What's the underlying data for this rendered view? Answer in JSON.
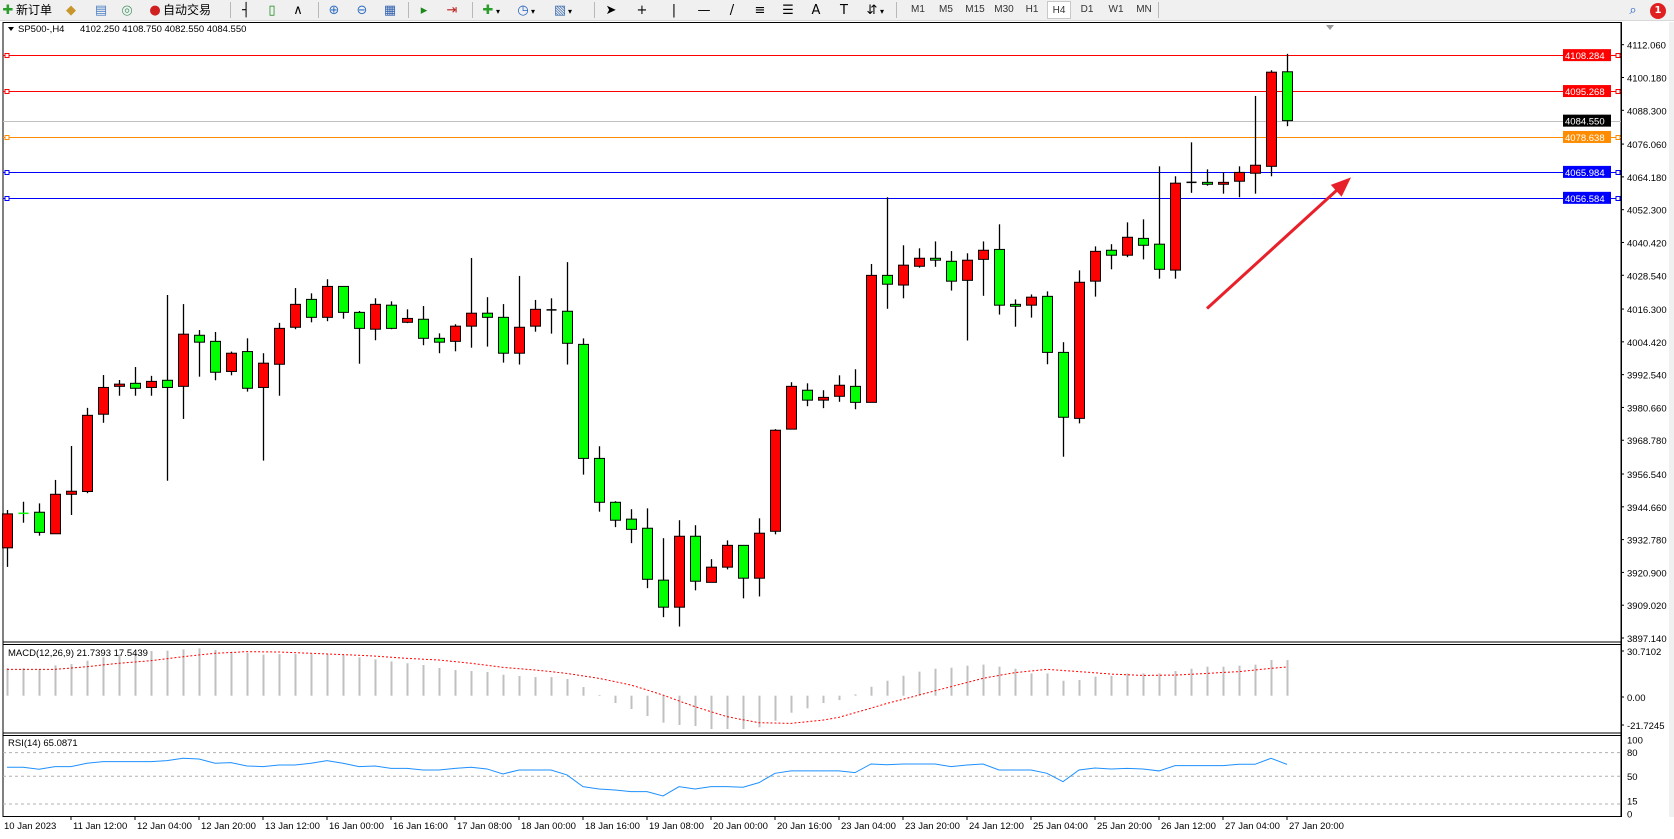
{
  "toolbar": {
    "new_order_label": "新订单",
    "auto_trading_label": "自动交易",
    "icons": [
      "new-order-icon",
      "market-watch-icon",
      "data-window-icon",
      "navigator-icon",
      "auto-trading-icon",
      "bar-chart-icon",
      "candlestick-icon",
      "line-chart-icon",
      "zoom-in-icon",
      "zoom-out-icon",
      "tile-windows-icon",
      "chart-shift-icon",
      "autoscroll-icon",
      "indicators-icon",
      "periods-icon",
      "templates-icon",
      "cursor-icon",
      "crosshair-icon",
      "vertical-line-icon",
      "horizontal-line-icon",
      "trendline-icon",
      "fibonacci-icon",
      "fibonacci-fan-icon",
      "text-icon",
      "text-label-icon",
      "arrows-icon",
      "search-icon",
      "notification-icon"
    ],
    "timeframes": [
      "M1",
      "M5",
      "M15",
      "M30",
      "H1",
      "H4",
      "D1",
      "W1",
      "MN"
    ],
    "active_timeframe": "H4",
    "notification_count": "1"
  },
  "chart_header": {
    "symbol": "SP500-,H4",
    "ohlc": "4102.250 4108.750 4082.550 4084.550"
  },
  "colors": {
    "bull_candle": "#ff0000",
    "bear_candle": "#00ff00",
    "doji": "#000000",
    "macd_hist": "#c0c0c0",
    "macd_signal": "#ff0000",
    "rsi_line": "#1e90ff",
    "arrow": "#e8202a"
  },
  "chart_data": {
    "type": "candlestick",
    "symbol": "SP500-",
    "timeframe": "H4",
    "ylim": [
      3897.14,
      4112.06
    ],
    "y_tick_labels": [
      "4112.060",
      "4100.180",
      "4088.300",
      "4076.060",
      "4064.180",
      "4052.300",
      "4040.420",
      "4028.540",
      "4016.300",
      "4004.420",
      "3992.540",
      "3980.660",
      "3968.780",
      "3956.540",
      "3944.660",
      "3932.780",
      "3920.900",
      "3909.020",
      "3897.140"
    ],
    "x_start_label": "10 Jan 2023",
    "x_tick_labels": [
      "11 Jan 12:00",
      "12 Jan 04:00",
      "12 Jan 20:00",
      "13 Jan 12:00",
      "16 Jan 00:00",
      "16 Jan 16:00",
      "17 Jan 08:00",
      "18 Jan 00:00",
      "18 Jan 16:00",
      "19 Jan 08:00",
      "20 Jan 00:00",
      "20 Jan 16:00",
      "23 Jan 04:00",
      "23 Jan 20:00",
      "24 Jan 12:00",
      "25 Jan 04:00",
      "25 Jan 20:00",
      "26 Jan 12:00",
      "27 Jan 04:00",
      "27 Jan 20:00"
    ],
    "x_tick_every_bars": 4,
    "ohlc": [
      [
        3929.8,
        3943.5,
        3922.9,
        3942.1
      ],
      [
        3942.3,
        3946.5,
        3938.9,
        3942.2
      ],
      [
        3942.7,
        3945.9,
        3934.2,
        3935.4
      ],
      [
        3934.9,
        3954.4,
        3934.9,
        3949.2
      ],
      [
        3949.2,
        3966.7,
        3941.7,
        3950.3
      ],
      [
        3950.2,
        3980.5,
        3949.6,
        3977.8
      ],
      [
        3978.2,
        3992.4,
        3975.1,
        3987.9
      ],
      [
        3988.3,
        3990.6,
        3984.9,
        3989.1
      ],
      [
        3989.4,
        3995.3,
        3984.9,
        3987.6
      ],
      [
        3987.9,
        3992.1,
        3984.9,
        3990.1
      ],
      [
        3990.5,
        4021.4,
        3954.1,
        3987.9
      ],
      [
        3988.3,
        4018.1,
        3976.5,
        4007.2
      ],
      [
        4006.8,
        4008.7,
        3991.8,
        4004.3
      ],
      [
        4004.6,
        4008.0,
        3990.5,
        3993.4
      ],
      [
        3993.7,
        4000.9,
        3992.3,
        4000.3
      ],
      [
        4000.9,
        4005.7,
        3986.4,
        3987.6
      ],
      [
        3987.9,
        4000.3,
        3961.4,
        3996.7
      ],
      [
        3996.3,
        4011.3,
        3984.9,
        4009.3
      ],
      [
        4009.7,
        4023.9,
        4009.0,
        4018.0
      ],
      [
        4019.8,
        4022.0,
        4011.5,
        4013.3
      ],
      [
        4013.3,
        4027.1,
        4011.9,
        4024.5
      ],
      [
        4024.5,
        4024.5,
        4012.8,
        4015.1
      ],
      [
        4015.1,
        4015.6,
        3996.5,
        4009.3
      ],
      [
        4009.0,
        4020.2,
        4005.0,
        4018.0
      ],
      [
        4017.7,
        4019.1,
        4009.0,
        4009.3
      ],
      [
        4011.5,
        4016.2,
        4011.2,
        4012.9
      ],
      [
        4012.6,
        4017.4,
        4003.2,
        4005.7
      ],
      [
        4005.7,
        4007.5,
        4000.3,
        4004.3
      ],
      [
        4004.6,
        4010.8,
        4001.0,
        4010.1
      ],
      [
        4010.1,
        4034.8,
        4002.3,
        4014.8
      ],
      [
        4014.8,
        4020.6,
        4002.7,
        4013.3
      ],
      [
        4013.3,
        4018.1,
        3996.9,
        4000.3
      ],
      [
        4000.3,
        4028.3,
        3996.2,
        4009.7
      ],
      [
        4010.1,
        4019.6,
        4008.1,
        4016.2
      ],
      [
        4016.0,
        4020.2,
        4007.4,
        4016.0
      ],
      [
        4015.5,
        4033.3,
        3996.2,
        4003.9
      ],
      [
        4003.5,
        4005.7,
        3956.3,
        3962.2
      ],
      [
        3962.2,
        3966.6,
        3942.9,
        3946.3
      ],
      [
        3946.3,
        3946.7,
        3937.3,
        3939.8
      ],
      [
        3940.2,
        3943.8,
        3931.5,
        3936.5
      ],
      [
        3936.9,
        3944.1,
        3915.2,
        3918.4
      ],
      [
        3918.1,
        3933.3,
        3904.7,
        3908.3
      ],
      [
        3908.3,
        3939.8,
        3901.3,
        3934.0
      ],
      [
        3934.0,
        3938.0,
        3914.4,
        3917.7
      ],
      [
        3917.3,
        3925.7,
        3917.3,
        3922.8
      ],
      [
        3922.8,
        3932.5,
        3922.0,
        3930.7
      ],
      [
        3930.7,
        3930.7,
        3911.5,
        3918.8
      ],
      [
        3918.8,
        3940.5,
        3912.2,
        3935.1
      ],
      [
        3935.8,
        3972.8,
        3934.7,
        3972.4
      ],
      [
        3972.8,
        3989.8,
        3972.8,
        3988.3
      ],
      [
        3986.9,
        3989.4,
        3981.1,
        3983.3
      ],
      [
        3983.3,
        3986.9,
        3980.4,
        3984.3
      ],
      [
        3984.7,
        3992.3,
        3982.7,
        3988.7
      ],
      [
        3988.3,
        3994.5,
        3980.0,
        3982.5
      ],
      [
        3982.5,
        4032.6,
        3982.5,
        4028.5
      ],
      [
        4028.5,
        4056.8,
        4016.4,
        4025.3
      ],
      [
        4025.0,
        4039.4,
        4020.2,
        4032.2
      ],
      [
        4031.8,
        4038.3,
        4031.3,
        4034.7
      ],
      [
        4034.7,
        4040.8,
        4031.6,
        4034.0
      ],
      [
        4033.6,
        4037.3,
        4023.0,
        4026.4
      ],
      [
        4026.7,
        4036.5,
        4004.9,
        4034.0
      ],
      [
        4034.3,
        4040.8,
        4021.1,
        4037.6
      ],
      [
        4037.9,
        4047.0,
        4014.3,
        4017.7
      ],
      [
        4018.0,
        4019.8,
        4009.9,
        4017.3
      ],
      [
        4017.7,
        4021.6,
        4013.2,
        4020.6
      ],
      [
        4020.9,
        4022.7,
        3996.3,
        4000.6
      ],
      [
        4000.6,
        4004.3,
        3962.8,
        3977.1
      ],
      [
        3976.7,
        4030.3,
        3974.9,
        4026.0
      ],
      [
        4026.4,
        4039.0,
        4020.8,
        4037.2
      ],
      [
        4037.6,
        4039.8,
        4030.7,
        4035.8
      ],
      [
        4035.8,
        4047.7,
        4035.1,
        4042.3
      ],
      [
        4041.9,
        4048.8,
        4034.3,
        4039.4
      ],
      [
        4039.8,
        4068.0,
        4027.3,
        4030.7
      ],
      [
        4030.4,
        4064.4,
        4027.3,
        4061.9
      ],
      [
        4062.2,
        4076.7,
        4058.4,
        4062.2
      ],
      [
        4062.2,
        4066.9,
        4061.0,
        4061.5
      ],
      [
        4061.5,
        4065.9,
        4058.1,
        4062.2
      ],
      [
        4062.6,
        4068.0,
        4056.8,
        4065.8
      ],
      [
        4065.5,
        4093.5,
        4058.1,
        4068.4
      ],
      [
        4068.0,
        4102.8,
        4064.4,
        4102.1
      ],
      [
        4102.25,
        4108.75,
        4082.55,
        4084.55
      ]
    ],
    "horizontal_lines": [
      {
        "price": 4108.284,
        "label": "4108.284",
        "color": "#ff0000"
      },
      {
        "price": 4095.268,
        "label": "4095.268",
        "color": "#ff0000"
      },
      {
        "price": 4084.55,
        "label": "4084.550",
        "color": "#c0c0c0",
        "label_bg": "#000000"
      },
      {
        "price": 4078.638,
        "label": "4078.638",
        "color": "#ff8c00"
      },
      {
        "price": 4065.984,
        "label": "4065.984",
        "color": "#0000ff"
      },
      {
        "price": 4056.584,
        "label": "4056.584",
        "color": "#0000ff"
      }
    ],
    "annotation_arrow": {
      "from": {
        "bar": 75,
        "price": 4016.5
      },
      "to": {
        "bar": 84,
        "price": 4064.0
      },
      "color": "#e8202a"
    },
    "macd": {
      "label": "MACD(12,26,9) 21.7393 17.5439",
      "ylim": [
        -21.7245,
        30.7102
      ],
      "y_tick_labels": [
        "30.7102",
        "0.00",
        "-21.7245"
      ],
      "main": [
        16.92,
        16.74,
        16.11,
        18.53,
        19.33,
        21.39,
        23.45,
        25.06,
        26.22,
        27.3,
        27.48,
        28.28,
        28.91,
        27.92,
        26.85,
        26.22,
        25.06,
        25.42,
        25.42,
        25.42,
        25.42,
        24.88,
        23.45,
        22.2,
        20.94,
        19.78,
        18.71,
        16.92,
        15.66,
        15.04,
        14.5,
        12.8,
        11.99,
        11.37,
        11.37,
        10.2,
        5.28,
        0.45,
        -4.48,
        -8.14,
        -12.44,
        -16.47,
        -17.9,
        -18.53,
        -20.32,
        -20.32,
        -20.32,
        -19.33,
        -15.3,
        -10.38,
        -7.7,
        -4.48,
        -2.69,
        0.81,
        5.46,
        9.13,
        12.17,
        14.68,
        16.47,
        17.09,
        18.35,
        18.97,
        17.72,
        16.47,
        13.6,
        13.6,
        9.13,
        9.58,
        11.64,
        12.17,
        13.6,
        13.6,
        13.6,
        15.04,
        16.47,
        17.72,
        17.72,
        18.35,
        18.97,
        21.75,
        21.74
      ],
      "signal": [
        16.1,
        16.1,
        16.1,
        16.1,
        16.9,
        17.7,
        18.8,
        19.8,
        20.6,
        21.4,
        22.6,
        23.8,
        24.9,
        25.9,
        26.4,
        26.9,
        26.8,
        26.7,
        26.3,
        25.9,
        25.5,
        25.1,
        24.7,
        24.2,
        23.5,
        22.8,
        22.3,
        21.8,
        20.8,
        19.8,
        18.6,
        17.3,
        16.5,
        15.7,
        14.7,
        13.6,
        12.1,
        10.6,
        8.6,
        6.5,
        3.5,
        0.4,
        -3.2,
        -6.7,
        -9.8,
        -12.8,
        -14.7,
        -16.5,
        -16.7,
        -16.9,
        -15.9,
        -14.9,
        -13.2,
        -10.4,
        -7.6,
        -4.7,
        -2.2,
        0.4,
        3.0,
        5.5,
        8.1,
        10.6,
        12.4,
        14.1,
        15.1,
        16.1,
        15.4,
        14.7,
        14.0,
        13.2,
        12.8,
        12.4,
        12.5,
        12.6,
        13.1,
        13.6,
        14.2,
        14.7,
        15.7,
        16.7,
        17.54
      ]
    },
    "rsi": {
      "label": "RSI(14) 65.0871",
      "ylim": [
        0,
        100
      ],
      "y_tick_labels": [
        "100",
        "80",
        "50",
        "15",
        "0"
      ],
      "levels": [
        80,
        50,
        15
      ],
      "values": [
        61.4,
        61.4,
        58.9,
        62.2,
        62.2,
        66.5,
        68.6,
        68.6,
        68.6,
        68.6,
        69.8,
        72.8,
        71.9,
        66.5,
        67.3,
        63.1,
        62.2,
        64.3,
        64.3,
        66.5,
        69.8,
        66.5,
        62.2,
        63.1,
        60.1,
        60.1,
        58.0,
        58.0,
        60.1,
        61.4,
        59.3,
        53.0,
        58.0,
        58.0,
        58.0,
        51.7,
        36.9,
        34.0,
        32.7,
        30.6,
        30.6,
        25.1,
        36.9,
        34.0,
        36.9,
        36.9,
        36.1,
        42.0,
        53.8,
        56.8,
        56.8,
        56.8,
        56.8,
        54.6,
        65.6,
        64.7,
        65.6,
        65.6,
        65.6,
        62.2,
        64.3,
        65.6,
        58.0,
        58.0,
        58.0,
        53.8,
        43.2,
        58.0,
        60.5,
        59.3,
        60.1,
        59.3,
        56.8,
        63.5,
        63.5,
        63.5,
        63.5,
        65.2,
        65.2,
        72.8,
        65.09
      ]
    }
  }
}
